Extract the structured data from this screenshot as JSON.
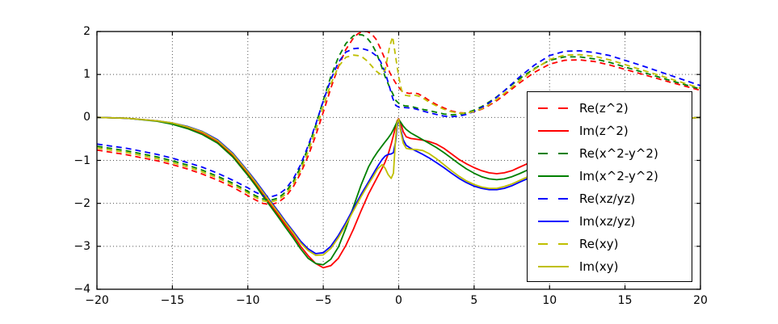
{
  "chart_data": {
    "type": "line",
    "title": "",
    "xlabel": "",
    "ylabel": "",
    "xlim": [
      -20,
      20
    ],
    "ylim": [
      -4,
      2
    ],
    "grid": true,
    "grid_style": "dotted",
    "legend_position": "center right",
    "background_color": "#ffffff",
    "axis_color": "#000000",
    "xticks": [
      {
        "v": -20,
        "label": "−20"
      },
      {
        "v": -15,
        "label": "−15"
      },
      {
        "v": -10,
        "label": "−10"
      },
      {
        "v": -5,
        "label": "−5"
      },
      {
        "v": 0,
        "label": "0"
      },
      {
        "v": 5,
        "label": "5"
      },
      {
        "v": 10,
        "label": "10"
      },
      {
        "v": 15,
        "label": "15"
      },
      {
        "v": 20,
        "label": "20"
      }
    ],
    "yticks": [
      {
        "v": 2,
        "label": "2"
      },
      {
        "v": 1,
        "label": "1"
      },
      {
        "v": 0,
        "label": "0"
      },
      {
        "v": -1,
        "label": "−1"
      },
      {
        "v": -2,
        "label": "−2"
      },
      {
        "v": -3,
        "label": "−3"
      },
      {
        "v": -4,
        "label": "−4"
      }
    ],
    "series": [
      {
        "name": "Re(z^2)",
        "color": "#ff0000",
        "dash": true,
        "x": [
          -20,
          -18,
          -16,
          -15,
          -14,
          -13,
          -12,
          -11,
          -10.5,
          -10,
          -9.5,
          -9,
          -8.5,
          -8,
          -7.5,
          -7,
          -6.5,
          -6,
          -5.5,
          -5,
          -4.5,
          -4,
          -3.5,
          -3,
          -2.7,
          -2.4,
          -2.1,
          -1.8,
          -1.5,
          -1.2,
          -0.9,
          -0.6,
          -0.4,
          -0.2,
          0,
          0.2,
          0.4,
          0.7,
          1,
          1.3,
          1.7,
          2,
          2.5,
          3,
          3.5,
          4,
          4.5,
          5,
          5.5,
          6,
          6.5,
          7,
          7.5,
          8,
          9,
          10,
          11,
          12,
          13,
          14,
          16,
          18,
          20
        ],
        "y": [
          -0.76,
          -0.87,
          -1.01,
          -1.1,
          -1.2,
          -1.32,
          -1.46,
          -1.62,
          -1.72,
          -1.82,
          -1.92,
          -2.0,
          -2.03,
          -1.98,
          -1.85,
          -1.62,
          -1.3,
          -0.9,
          -0.42,
          0.12,
          0.68,
          1.18,
          1.58,
          1.85,
          1.95,
          2.0,
          2.0,
          1.95,
          1.82,
          1.6,
          1.35,
          1.05,
          0.92,
          0.8,
          0.7,
          0.62,
          0.58,
          0.56,
          0.57,
          0.55,
          0.47,
          0.4,
          0.3,
          0.22,
          0.15,
          0.11,
          0.1,
          0.13,
          0.19,
          0.28,
          0.39,
          0.52,
          0.66,
          0.8,
          1.05,
          1.24,
          1.33,
          1.34,
          1.3,
          1.22,
          1.02,
          0.82,
          0.63
        ]
      },
      {
        "name": "Im(z^2)",
        "color": "#ff0000",
        "dash": false,
        "x": [
          -20,
          -18,
          -16,
          -15,
          -14,
          -13,
          -12,
          -11,
          -10,
          -9.5,
          -9,
          -8.5,
          -8,
          -7.5,
          -7,
          -6.5,
          -6,
          -5.5,
          -5,
          -4.5,
          -4,
          -3.5,
          -3,
          -2.5,
          -2,
          -1.7,
          -1.4,
          -1.1,
          -0.9,
          -0.7,
          -0.5,
          -0.35,
          -0.2,
          -0.1,
          0,
          0.15,
          0.3,
          0.5,
          0.8,
          1.2,
          1.6,
          2,
          2.5,
          3,
          3.5,
          4,
          4.5,
          5,
          5.5,
          6,
          6.5,
          7,
          7.5,
          8,
          8.7,
          10,
          12,
          14,
          16,
          18,
          19.5,
          20
        ],
        "y": [
          0.0,
          -0.02,
          -0.08,
          -0.14,
          -0.23,
          -0.36,
          -0.56,
          -0.88,
          -1.3,
          -1.53,
          -1.78,
          -2.02,
          -2.26,
          -2.5,
          -2.74,
          -3.0,
          -3.22,
          -3.4,
          -3.5,
          -3.45,
          -3.28,
          -2.98,
          -2.6,
          -2.18,
          -1.78,
          -1.58,
          -1.38,
          -1.18,
          -1.04,
          -0.86,
          -0.62,
          -0.42,
          -0.2,
          -0.08,
          -0.03,
          -0.15,
          -0.33,
          -0.45,
          -0.49,
          -0.51,
          -0.53,
          -0.56,
          -0.62,
          -0.72,
          -0.85,
          -0.98,
          -1.08,
          -1.17,
          -1.24,
          -1.29,
          -1.31,
          -1.29,
          -1.24,
          -1.16,
          -1.05,
          -0.85,
          -0.55,
          -0.32,
          -0.15,
          -0.05,
          -0.01,
          0.0
        ]
      },
      {
        "name": "Re(x^2-y^2)",
        "color": "#008000",
        "dash": true,
        "x": [
          -20,
          -18,
          -16,
          -15,
          -14,
          -13,
          -12,
          -11,
          -10.5,
          -10,
          -9.5,
          -9,
          -8.5,
          -8,
          -7.5,
          -7,
          -6.5,
          -6,
          -5.5,
          -5,
          -4.5,
          -4,
          -3.5,
          -3,
          -2.7,
          -2.4,
          -2.1,
          -1.8,
          -1.5,
          -1.2,
          -0.9,
          -0.6,
          -0.4,
          -0.2,
          0,
          0.2,
          0.4,
          0.7,
          1,
          1.3,
          1.7,
          2,
          2.5,
          3,
          3.5,
          4,
          4.5,
          5,
          5.5,
          6,
          6.5,
          7,
          7.5,
          8,
          9,
          10,
          11,
          12,
          13,
          14,
          16,
          18,
          20
        ],
        "y": [
          -0.67,
          -0.78,
          -0.92,
          -1.01,
          -1.11,
          -1.23,
          -1.37,
          -1.53,
          -1.62,
          -1.72,
          -1.82,
          -1.9,
          -1.93,
          -1.88,
          -1.74,
          -1.5,
          -1.15,
          -0.7,
          -0.18,
          0.4,
          0.95,
          1.4,
          1.72,
          1.9,
          1.93,
          1.92,
          1.85,
          1.72,
          1.52,
          1.25,
          0.95,
          0.7,
          0.56,
          0.4,
          0.33,
          0.29,
          0.27,
          0.26,
          0.24,
          0.21,
          0.18,
          0.16,
          0.12,
          0.08,
          0.06,
          0.07,
          0.11,
          0.17,
          0.25,
          0.36,
          0.48,
          0.62,
          0.76,
          0.9,
          1.14,
          1.33,
          1.41,
          1.41,
          1.36,
          1.28,
          1.07,
          0.86,
          0.66
        ]
      },
      {
        "name": "Im(x^2-y^2)",
        "color": "#008000",
        "dash": false,
        "x": [
          -20,
          -18,
          -16,
          -15,
          -14,
          -13,
          -12,
          -11,
          -10,
          -9.5,
          -9,
          -8.5,
          -8,
          -7.5,
          -7,
          -6.5,
          -6,
          -5.5,
          -5,
          -4.5,
          -4,
          -3.5,
          -3,
          -2.5,
          -2,
          -1.7,
          -1.4,
          -1.1,
          -0.9,
          -0.7,
          -0.5,
          -0.35,
          -0.2,
          -0.1,
          0,
          0.15,
          0.3,
          0.5,
          0.8,
          1.2,
          1.6,
          2,
          2.5,
          3,
          3.5,
          4,
          4.5,
          5,
          5.5,
          6,
          6.5,
          7,
          7.5,
          8,
          8.7,
          10,
          12,
          14,
          16,
          18,
          19.5,
          20
        ],
        "y": [
          0.0,
          -0.02,
          -0.09,
          -0.16,
          -0.26,
          -0.4,
          -0.6,
          -0.92,
          -1.35,
          -1.58,
          -1.83,
          -2.07,
          -2.31,
          -2.56,
          -2.8,
          -3.06,
          -3.28,
          -3.4,
          -3.43,
          -3.3,
          -3.02,
          -2.58,
          -2.08,
          -1.58,
          -1.15,
          -0.96,
          -0.8,
          -0.66,
          -0.57,
          -0.48,
          -0.38,
          -0.28,
          -0.17,
          -0.1,
          -0.05,
          -0.12,
          -0.2,
          -0.28,
          -0.36,
          -0.44,
          -0.52,
          -0.6,
          -0.7,
          -0.82,
          -0.95,
          -1.08,
          -1.2,
          -1.3,
          -1.38,
          -1.43,
          -1.45,
          -1.43,
          -1.38,
          -1.31,
          -1.2,
          -1.0,
          -0.65,
          -0.38,
          -0.18,
          -0.06,
          -0.01,
          0.0
        ]
      },
      {
        "name": "Re(xz/yz)",
        "color": "#0000ff",
        "dash": true,
        "x": [
          -20,
          -18,
          -16,
          -15,
          -14,
          -13,
          -12,
          -11,
          -10.5,
          -10,
          -9.5,
          -9,
          -8.5,
          -8,
          -7.5,
          -7,
          -6.5,
          -6,
          -5.5,
          -5,
          -4.5,
          -4,
          -3.5,
          -3,
          -2.7,
          -2.4,
          -2.1,
          -1.8,
          -1.5,
          -1.2,
          -0.9,
          -0.6,
          -0.4,
          -0.2,
          0,
          0.2,
          0.4,
          0.7,
          1,
          1.3,
          1.7,
          2,
          2.5,
          3,
          3.5,
          4,
          4.5,
          5,
          5.5,
          6,
          6.5,
          7,
          7.5,
          8,
          9,
          10,
          11,
          12,
          13,
          14,
          16,
          18,
          20
        ],
        "y": [
          -0.62,
          -0.72,
          -0.86,
          -0.95,
          -1.05,
          -1.16,
          -1.3,
          -1.46,
          -1.55,
          -1.64,
          -1.74,
          -1.82,
          -1.85,
          -1.8,
          -1.67,
          -1.44,
          -1.1,
          -0.66,
          -0.16,
          0.38,
          0.88,
          1.28,
          1.52,
          1.6,
          1.61,
          1.6,
          1.57,
          1.52,
          1.44,
          1.3,
          1.05,
          0.7,
          0.45,
          0.28,
          0.24,
          0.23,
          0.23,
          0.22,
          0.21,
          0.18,
          0.14,
          0.11,
          0.07,
          0.03,
          0.02,
          0.03,
          0.07,
          0.14,
          0.23,
          0.34,
          0.47,
          0.62,
          0.78,
          0.94,
          1.22,
          1.44,
          1.54,
          1.55,
          1.51,
          1.44,
          1.22,
          0.98,
          0.74
        ]
      },
      {
        "name": "Im(xz/yz)",
        "color": "#0000ff",
        "dash": false,
        "x": [
          -20,
          -18,
          -16,
          -15,
          -14,
          -13,
          -12,
          -11,
          -10,
          -9.5,
          -9,
          -8.5,
          -8,
          -7.5,
          -7,
          -6.5,
          -6,
          -5.5,
          -5,
          -4.5,
          -4,
          -3.5,
          -3,
          -2.5,
          -2,
          -1.7,
          -1.4,
          -1.1,
          -0.9,
          -0.7,
          -0.5,
          -0.35,
          -0.2,
          -0.1,
          0,
          0.15,
          0.3,
          0.5,
          0.8,
          1.2,
          1.6,
          2,
          2.5,
          3,
          3.5,
          4,
          4.5,
          5,
          5.5,
          6,
          6.5,
          7,
          7.5,
          8,
          8.7,
          10,
          12,
          14,
          16,
          18,
          19.5,
          20
        ],
        "y": [
          0.0,
          -0.02,
          -0.08,
          -0.13,
          -0.21,
          -0.33,
          -0.52,
          -0.83,
          -1.25,
          -1.47,
          -1.71,
          -1.95,
          -2.18,
          -2.42,
          -2.65,
          -2.88,
          -3.06,
          -3.17,
          -3.15,
          -3.0,
          -2.75,
          -2.45,
          -2.12,
          -1.8,
          -1.5,
          -1.32,
          -1.14,
          -0.98,
          -0.9,
          -0.86,
          -0.85,
          -0.82,
          -0.55,
          -0.2,
          -0.04,
          -0.3,
          -0.52,
          -0.65,
          -0.72,
          -0.79,
          -0.86,
          -0.94,
          -1.05,
          -1.17,
          -1.3,
          -1.42,
          -1.52,
          -1.6,
          -1.65,
          -1.68,
          -1.68,
          -1.65,
          -1.59,
          -1.51,
          -1.4,
          -1.15,
          -0.75,
          -0.44,
          -0.21,
          -0.07,
          -0.01,
          0.0
        ]
      },
      {
        "name": "Re(xy)",
        "color": "#bfbf00",
        "dash": true,
        "x": [
          -20,
          -18,
          -16,
          -15,
          -14,
          -13,
          -12,
          -11,
          -10.5,
          -10,
          -9.5,
          -9,
          -8.5,
          -8,
          -7.5,
          -7,
          -6.5,
          -6,
          -5.5,
          -5,
          -4.5,
          -4,
          -3.5,
          -3,
          -2.7,
          -2.4,
          -2.1,
          -1.8,
          -1.5,
          -1.2,
          -0.9,
          -0.6,
          -0.4,
          -0.2,
          0,
          0.2,
          0.4,
          0.7,
          1,
          1.3,
          1.7,
          2,
          2.5,
          3,
          3.5,
          4,
          4.5,
          5,
          5.5,
          6,
          6.5,
          7,
          7.5,
          8,
          9,
          10,
          11,
          12,
          13,
          14,
          16,
          18,
          20
        ],
        "y": [
          -0.71,
          -0.82,
          -0.96,
          -1.05,
          -1.15,
          -1.27,
          -1.41,
          -1.57,
          -1.66,
          -1.76,
          -1.86,
          -1.94,
          -1.97,
          -1.92,
          -1.79,
          -1.56,
          -1.23,
          -0.8,
          -0.3,
          0.25,
          0.78,
          1.18,
          1.4,
          1.45,
          1.44,
          1.4,
          1.32,
          1.2,
          1.08,
          1.0,
          1.1,
          1.65,
          1.88,
          1.4,
          0.95,
          0.62,
          0.52,
          0.5,
          0.52,
          0.5,
          0.43,
          0.36,
          0.27,
          0.19,
          0.13,
          0.1,
          0.1,
          0.14,
          0.2,
          0.3,
          0.42,
          0.56,
          0.7,
          0.85,
          1.12,
          1.35,
          1.45,
          1.46,
          1.42,
          1.34,
          1.12,
          0.9,
          0.68
        ]
      },
      {
        "name": "Im(xy)",
        "color": "#bfbf00",
        "dash": false,
        "x": [
          -20,
          -18,
          -16,
          -15,
          -14,
          -13,
          -12,
          -11,
          -10,
          -9.5,
          -9,
          -8.5,
          -8,
          -7.5,
          -7,
          -6.5,
          -6,
          -5.5,
          -5,
          -4.5,
          -4,
          -3.5,
          -3,
          -2.5,
          -2,
          -1.7,
          -1.4,
          -1.1,
          -0.9,
          -0.7,
          -0.5,
          -0.35,
          -0.2,
          -0.1,
          0,
          0.15,
          0.3,
          0.5,
          0.8,
          1.2,
          1.6,
          2,
          2.5,
          3,
          3.5,
          4,
          4.5,
          5,
          5.5,
          6,
          6.5,
          7,
          7.5,
          8,
          8.7,
          10,
          12,
          14,
          16,
          18,
          19.5,
          20
        ],
        "y": [
          0.0,
          -0.02,
          -0.08,
          -0.13,
          -0.22,
          -0.34,
          -0.54,
          -0.85,
          -1.27,
          -1.5,
          -1.74,
          -1.98,
          -2.21,
          -2.45,
          -2.68,
          -2.92,
          -3.1,
          -3.21,
          -3.2,
          -3.05,
          -2.8,
          -2.5,
          -2.17,
          -1.85,
          -1.55,
          -1.38,
          -1.2,
          -1.1,
          -1.18,
          -1.33,
          -1.42,
          -1.3,
          -0.45,
          -0.12,
          -0.04,
          -0.35,
          -0.6,
          -0.72,
          -0.74,
          -0.75,
          -0.77,
          -0.84,
          -0.96,
          -1.1,
          -1.24,
          -1.37,
          -1.48,
          -1.56,
          -1.62,
          -1.65,
          -1.65,
          -1.61,
          -1.55,
          -1.47,
          -1.36,
          -1.1,
          -0.72,
          -0.42,
          -0.2,
          -0.06,
          -0.01,
          0.0
        ]
      }
    ]
  },
  "legend": {
    "items": [
      {
        "label": "Re(z^2)"
      },
      {
        "label": "Im(z^2)"
      },
      {
        "label": "Re(x^2-y^2)"
      },
      {
        "label": "Im(x^2-y^2)"
      },
      {
        "label": "Re(xz/yz)"
      },
      {
        "label": "Im(xz/yz)"
      },
      {
        "label": "Re(xy)"
      },
      {
        "label": "Im(xy)"
      }
    ]
  }
}
